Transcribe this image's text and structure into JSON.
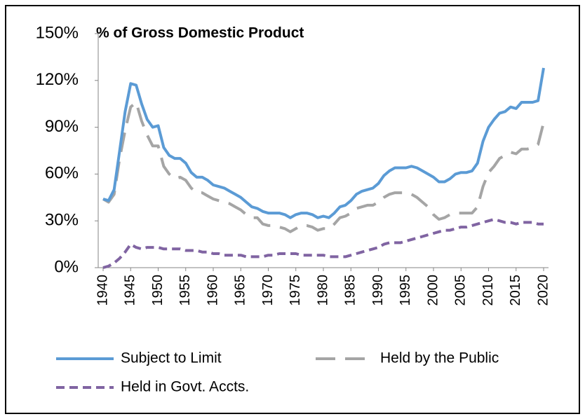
{
  "chart_data": {
    "type": "line",
    "title": "% of Gross Domestic Product",
    "x": [
      1940,
      1941,
      1942,
      1943,
      1944,
      1945,
      1946,
      1947,
      1948,
      1949,
      1950,
      1951,
      1952,
      1953,
      1954,
      1955,
      1956,
      1957,
      1958,
      1959,
      1960,
      1961,
      1962,
      1963,
      1964,
      1965,
      1966,
      1967,
      1968,
      1969,
      1970,
      1971,
      1972,
      1973,
      1974,
      1975,
      1976,
      1977,
      1978,
      1979,
      1980,
      1981,
      1982,
      1983,
      1984,
      1985,
      1986,
      1987,
      1988,
      1989,
      1990,
      1991,
      1992,
      1993,
      1994,
      1995,
      1996,
      1997,
      1998,
      1999,
      2000,
      2001,
      2002,
      2003,
      2004,
      2005,
      2006,
      2007,
      2008,
      2009,
      2010,
      2011,
      2012,
      2013,
      2014,
      2015,
      2016,
      2017,
      2018,
      2019,
      2020
    ],
    "series": [
      {
        "name": "Subject to Limit",
        "color": "#5b9bd5",
        "line_style": "solid",
        "values": [
          44,
          43,
          50,
          75,
          100,
          118,
          117,
          105,
          95,
          90,
          91,
          77,
          72,
          70,
          70,
          67,
          61,
          58,
          58,
          56,
          53,
          52,
          51,
          49,
          47,
          45,
          42,
          39,
          38,
          36,
          35,
          35,
          35,
          34,
          32,
          34,
          35,
          35,
          34,
          32,
          33,
          32,
          35,
          39,
          40,
          43,
          47,
          49,
          50,
          51,
          54,
          59,
          62,
          64,
          64,
          64,
          65,
          64,
          62,
          60,
          58,
          55,
          55,
          57,
          60,
          61,
          61,
          62,
          67,
          81,
          90,
          95,
          99,
          100,
          103,
          102,
          106,
          106,
          106,
          107,
          128
        ]
      },
      {
        "name": "Held by the Public",
        "color": "#a5a5a5",
        "line_style": "long-dash",
        "values": [
          44,
          42,
          47,
          70,
          88,
          103,
          106,
          94,
          85,
          78,
          78,
          65,
          60,
          57,
          58,
          56,
          51,
          48,
          48,
          46,
          44,
          43,
          42,
          41,
          39,
          37,
          34,
          32,
          32,
          28,
          27,
          27,
          26,
          25,
          23,
          25,
          27,
          27,
          26,
          24,
          25,
          25,
          28,
          32,
          33,
          35,
          38,
          39,
          40,
          40,
          42,
          45,
          47,
          48,
          48,
          48,
          47,
          45,
          42,
          39,
          34,
          31,
          32,
          34,
          35,
          35,
          35,
          35,
          39,
          52,
          61,
          65,
          70,
          72,
          74,
          73,
          76,
          76,
          77,
          79,
          93
        ]
      },
      {
        "name": "Held in Govt. Accts.",
        "color": "#8064a2",
        "line_style": "dash",
        "values": [
          0,
          1,
          3,
          6,
          10,
          15,
          13,
          12,
          13,
          13,
          13,
          12,
          12,
          12,
          12,
          11,
          11,
          11,
          10,
          10,
          9,
          9,
          8,
          8,
          8,
          8,
          7,
          7,
          7,
          7,
          8,
          8,
          9,
          9,
          9,
          9,
          8,
          8,
          8,
          8,
          8,
          7,
          7,
          7,
          7,
          8,
          9,
          10,
          11,
          12,
          13,
          15,
          16,
          16,
          16,
          17,
          18,
          19,
          20,
          21,
          22,
          23,
          24,
          24,
          25,
          26,
          26,
          27,
          28,
          29,
          30,
          31,
          30,
          29,
          29,
          28,
          29,
          29,
          29,
          28,
          28
        ]
      }
    ],
    "xlim": [
      1940,
      2020
    ],
    "xticks": [
      1940,
      1945,
      1950,
      1955,
      1960,
      1965,
      1970,
      1975,
      1980,
      1985,
      1990,
      1995,
      2000,
      2005,
      2010,
      2015,
      2020
    ],
    "ylim": [
      0,
      150
    ],
    "yticks": [
      {
        "value": 0,
        "label": "0%"
      },
      {
        "value": 30,
        "label": "30%"
      },
      {
        "value": 60,
        "label": "60%"
      },
      {
        "value": 90,
        "label": "90%"
      },
      {
        "value": 120,
        "label": "120%"
      },
      {
        "value": 150,
        "label": "150%"
      }
    ],
    "grid": false,
    "legend": "bottom"
  }
}
